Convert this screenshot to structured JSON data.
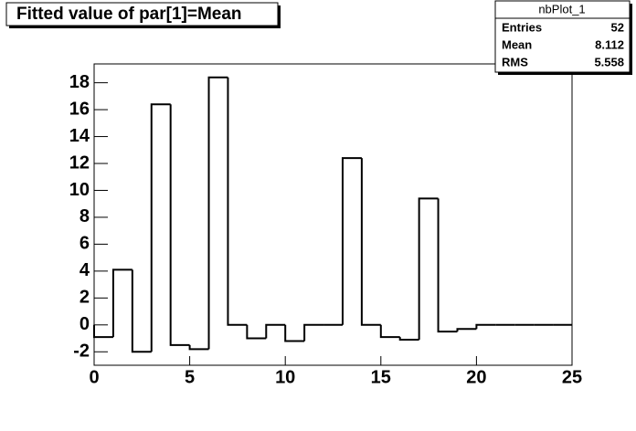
{
  "chart_data": {
    "type": "histogram",
    "title": "Fitted value of par[1]=Mean",
    "bins": [
      0,
      1,
      2,
      3,
      4,
      5,
      6,
      7,
      8,
      9,
      10,
      11,
      12,
      13,
      14,
      15,
      16,
      17,
      18,
      19,
      20,
      21,
      22,
      23,
      24,
      25
    ],
    "counts": [
      -0.9,
      4.1,
      -2.0,
      16.4,
      -1.5,
      -1.8,
      18.4,
      0,
      -1.0,
      0,
      -1.2,
      0,
      0,
      12.4,
      0,
      -0.9,
      -1.1,
      9.4,
      -0.5,
      -0.3,
      0,
      0,
      0,
      0,
      0
    ],
    "color": "#000000",
    "xlim": [
      0,
      25
    ],
    "xticks": [
      0,
      5,
      10,
      15,
      20,
      25
    ],
    "ylim": [
      -3,
      19.4
    ],
    "yticks": [
      -2,
      0,
      2,
      4,
      6,
      8,
      10,
      12,
      14,
      16,
      18
    ],
    "stats": {
      "title": "nbPlot_1",
      "rows": [
        {
          "label": "Entries",
          "value": 52
        },
        {
          "label": "Mean",
          "value": 8.112
        },
        {
          "label": "RMS",
          "value": 5.558
        }
      ]
    }
  }
}
